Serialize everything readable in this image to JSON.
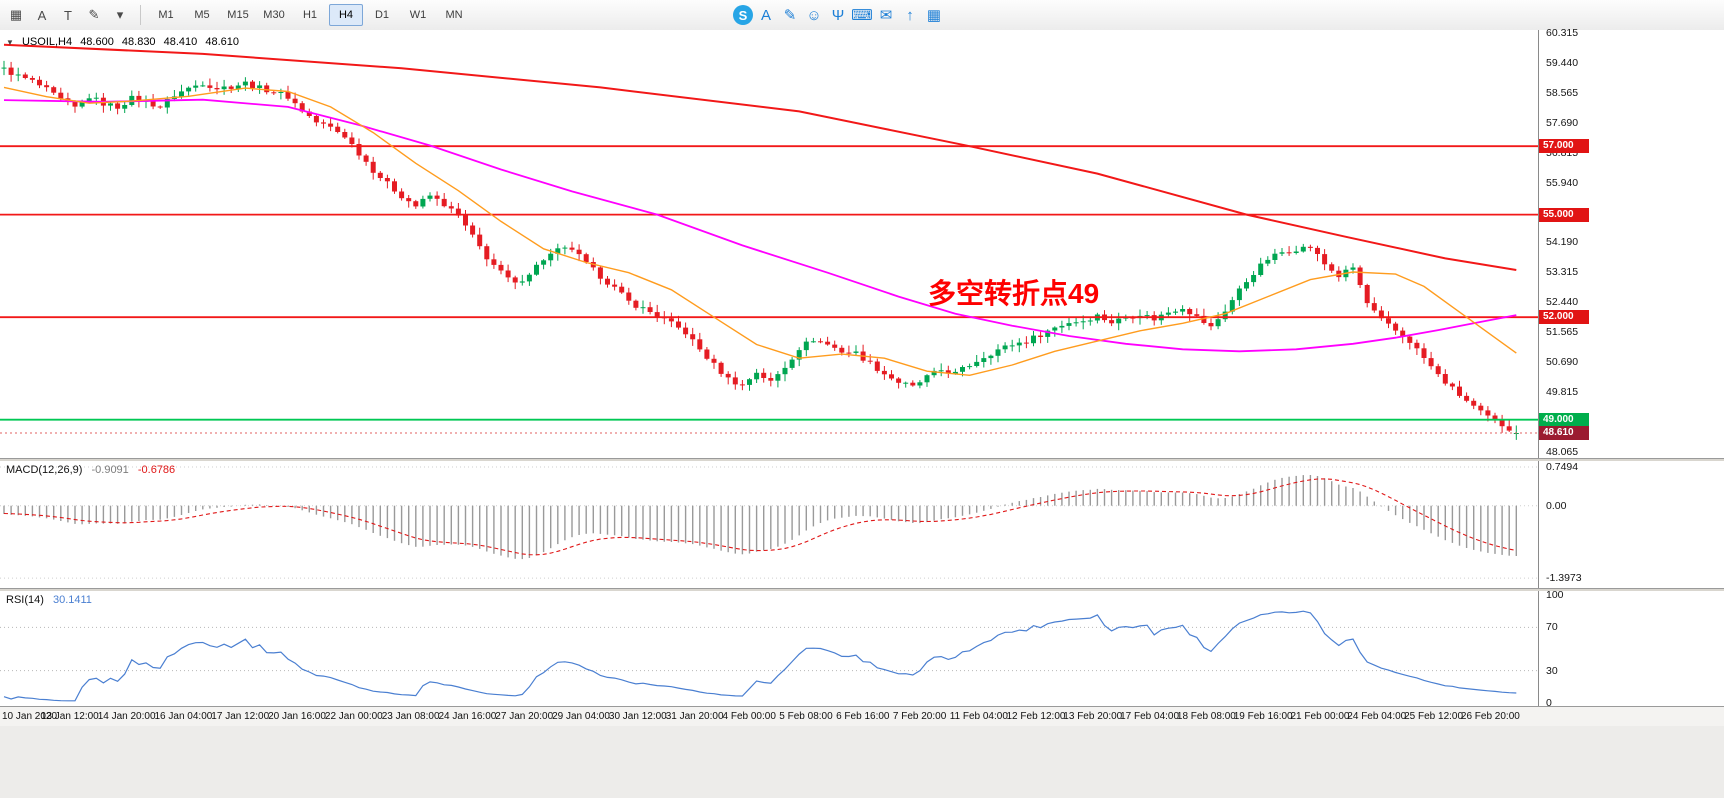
{
  "toolbar": {
    "left_icons": [
      {
        "name": "palette-grid-icon",
        "glyph": "▦"
      },
      {
        "name": "text-label-icon",
        "glyph": "A"
      },
      {
        "name": "cursor-tool-icon",
        "glyph": "T"
      },
      {
        "name": "lines-tool-icon",
        "glyph": "✎"
      },
      {
        "name": "dropdown-caret-icon",
        "glyph": "▾"
      }
    ],
    "timeframes": [
      "M1",
      "M5",
      "M15",
      "M30",
      "H1",
      "H4",
      "D1",
      "W1",
      "MN"
    ],
    "active_timeframe": "H4",
    "input_bar_icons": [
      {
        "name": "sogou-logo-icon",
        "glyph": "S",
        "kind": "logo",
        "color": "#ffffff",
        "bg": "#27a5e6"
      },
      {
        "name": "input-mode-icon",
        "glyph": "A",
        "color": "#1d7fd6"
      },
      {
        "name": "handwriting-icon",
        "glyph": "✎",
        "color": "#1d7fd6"
      },
      {
        "name": "emoji-icon",
        "glyph": "☺",
        "color": "#1d7fd6"
      },
      {
        "name": "voice-icon",
        "glyph": "Ψ",
        "color": "#1d7fd6"
      },
      {
        "name": "keyboard-icon",
        "glyph": "⌨",
        "color": "#1d7fd6"
      },
      {
        "name": "mail-icon",
        "glyph": "✉",
        "color": "#1d7fd6"
      },
      {
        "name": "share-icon",
        "glyph": "↑",
        "color": "#1d7fd6"
      },
      {
        "name": "toolbox-icon",
        "glyph": "▦",
        "color": "#1d7fd6"
      }
    ]
  },
  "chart": {
    "readout": {
      "caret": "▼",
      "symbol": "USOIL,H4",
      "open": "48.600",
      "high": "48.830",
      "low": "48.410",
      "close": "48.610"
    },
    "annotation": {
      "text": "多空转折点49",
      "color": "#fe0000"
    },
    "scale": {
      "max": 60.4,
      "min": 47.88
    },
    "axis_ticks": [
      "60.315",
      "59.440",
      "58.565",
      "57.690",
      "56.815",
      "55.940",
      "55.065",
      "54.190",
      "53.315",
      "52.440",
      "51.565",
      "50.690",
      "49.815",
      "48.940",
      "48.065"
    ],
    "hlines": [
      {
        "price": 57.0,
        "label": "57.000",
        "color": "#f21818",
        "badge_bg": "#e11414"
      },
      {
        "price": 55.0,
        "label": "55.000",
        "color": "#f21818",
        "badge_bg": "#e11414"
      },
      {
        "price": 52.0,
        "label": "52.000",
        "color": "#f21818",
        "badge_bg": "#e11414"
      },
      {
        "price": 49.0,
        "label": "49.000",
        "color": "#00c853",
        "badge_bg": "#00ae4c"
      }
    ],
    "bid_line": {
      "price": 48.61,
      "label": "48.610",
      "color": "#e06060",
      "badge_bg": "#9b1b30"
    }
  },
  "chart_data": {
    "type": "candlestick",
    "symbol": "USOIL",
    "timeframe": "H4",
    "bars": 214,
    "up_color": "#00a651",
    "down_color": "#e51c23",
    "wiggle": 0.16,
    "wick": 0.18,
    "warmup_bars": 30,
    "warmup_start": 60.1,
    "last_candle": {
      "open": 48.6,
      "high": 48.83,
      "low": 48.41,
      "close": 48.61
    },
    "price_path": [
      [
        0,
        59.25
      ],
      [
        2,
        59.05
      ],
      [
        4,
        58.9
      ],
      [
        6,
        58.65
      ],
      [
        8,
        58.35
      ],
      [
        10,
        58.12
      ],
      [
        12,
        58.45
      ],
      [
        14,
        58.25
      ],
      [
        16,
        58.15
      ],
      [
        18,
        58.4
      ],
      [
        20,
        58.3
      ],
      [
        22,
        58.15
      ],
      [
        24,
        58.5
      ],
      [
        26,
        58.7
      ],
      [
        28,
        58.85
      ],
      [
        30,
        58.7
      ],
      [
        32,
        58.75
      ],
      [
        34,
        58.85
      ],
      [
        36,
        58.7
      ],
      [
        38,
        58.6
      ],
      [
        40,
        58.45
      ],
      [
        42,
        58.05
      ],
      [
        44,
        57.7
      ],
      [
        46,
        57.55
      ],
      [
        48,
        57.3
      ],
      [
        50,
        56.8
      ],
      [
        52,
        56.3
      ],
      [
        54,
        55.9
      ],
      [
        56,
        55.55
      ],
      [
        58,
        55.25
      ],
      [
        60,
        55.55
      ],
      [
        62,
        55.3
      ],
      [
        64,
        54.95
      ],
      [
        66,
        54.35
      ],
      [
        68,
        53.75
      ],
      [
        70,
        53.3
      ],
      [
        72,
        52.95
      ],
      [
        74,
        53.3
      ],
      [
        76,
        53.7
      ],
      [
        78,
        53.95
      ],
      [
        80,
        54.0
      ],
      [
        82,
        53.55
      ],
      [
        84,
        53.2
      ],
      [
        86,
        52.85
      ],
      [
        88,
        52.45
      ],
      [
        90,
        52.25
      ],
      [
        92,
        52.05
      ],
      [
        94,
        51.8
      ],
      [
        96,
        51.55
      ],
      [
        98,
        51.05
      ],
      [
        100,
        50.6
      ],
      [
        102,
        50.2
      ],
      [
        104,
        50.0
      ],
      [
        106,
        50.4
      ],
      [
        108,
        50.1
      ],
      [
        110,
        50.55
      ],
      [
        112,
        51.1
      ],
      [
        114,
        51.35
      ],
      [
        116,
        51.2
      ],
      [
        118,
        51.0
      ],
      [
        120,
        50.95
      ],
      [
        122,
        50.65
      ],
      [
        124,
        50.35
      ],
      [
        126,
        50.1
      ],
      [
        128,
        49.95
      ],
      [
        130,
        50.25
      ],
      [
        132,
        50.45
      ],
      [
        134,
        50.35
      ],
      [
        136,
        50.6
      ],
      [
        138,
        50.85
      ],
      [
        140,
        51.05
      ],
      [
        142,
        51.2
      ],
      [
        144,
        51.3
      ],
      [
        146,
        51.5
      ],
      [
        148,
        51.7
      ],
      [
        150,
        51.85
      ],
      [
        152,
        51.9
      ],
      [
        154,
        52.05
      ],
      [
        156,
        51.85
      ],
      [
        158,
        52.0
      ],
      [
        160,
        52.1
      ],
      [
        162,
        51.95
      ],
      [
        164,
        52.15
      ],
      [
        166,
        52.3
      ],
      [
        168,
        52.0
      ],
      [
        170,
        51.7
      ],
      [
        172,
        52.2
      ],
      [
        174,
        52.8
      ],
      [
        176,
        53.3
      ],
      [
        178,
        53.7
      ],
      [
        180,
        53.9
      ],
      [
        182,
        54.0
      ],
      [
        184,
        54.05
      ],
      [
        186,
        53.55
      ],
      [
        188,
        53.2
      ],
      [
        190,
        53.45
      ],
      [
        192,
        52.4
      ],
      [
        194,
        51.9
      ],
      [
        196,
        51.6
      ],
      [
        198,
        51.3
      ],
      [
        200,
        50.8
      ],
      [
        202,
        50.3
      ],
      [
        204,
        49.9
      ],
      [
        206,
        49.55
      ],
      [
        208,
        49.2
      ],
      [
        210,
        48.95
      ],
      [
        212,
        48.75
      ],
      [
        213,
        48.61
      ]
    ],
    "ma_lines": [
      {
        "name": "ma-slow-red",
        "color": "#f21818",
        "width": 2,
        "points": [
          [
            0,
            59.97
          ],
          [
            28,
            59.7
          ],
          [
            56,
            59.28
          ],
          [
            84,
            58.72
          ],
          [
            112,
            58.02
          ],
          [
            136,
            57.0
          ],
          [
            154,
            56.2
          ],
          [
            175,
            55.0
          ],
          [
            189,
            54.35
          ],
          [
            203,
            53.72
          ],
          [
            213,
            53.38
          ]
        ]
      },
      {
        "name": "ma-mid-magenta",
        "color": "#ff00ff",
        "width": 1.8,
        "points": [
          [
            0,
            58.35
          ],
          [
            14,
            58.3
          ],
          [
            28,
            58.36
          ],
          [
            40,
            58.15
          ],
          [
            50,
            57.62
          ],
          [
            60,
            57.02
          ],
          [
            70,
            56.32
          ],
          [
            80,
            55.68
          ],
          [
            92,
            55.0
          ],
          [
            104,
            54.1
          ],
          [
            116,
            53.3
          ],
          [
            126,
            52.6
          ],
          [
            134,
            52.1
          ],
          [
            142,
            51.75
          ],
          [
            150,
            51.45
          ],
          [
            158,
            51.22
          ],
          [
            166,
            51.06
          ],
          [
            174,
            51.0
          ],
          [
            182,
            51.06
          ],
          [
            190,
            51.22
          ],
          [
            196,
            51.4
          ],
          [
            202,
            51.62
          ],
          [
            208,
            51.86
          ],
          [
            213,
            52.06
          ]
        ]
      },
      {
        "name": "ma-fast-orange",
        "color": "#ff9c1e",
        "width": 1.4,
        "points": [
          [
            0,
            58.72
          ],
          [
            6,
            58.45
          ],
          [
            12,
            58.26
          ],
          [
            18,
            58.32
          ],
          [
            26,
            58.46
          ],
          [
            34,
            58.7
          ],
          [
            40,
            58.6
          ],
          [
            46,
            58.15
          ],
          [
            52,
            57.4
          ],
          [
            58,
            56.5
          ],
          [
            64,
            55.7
          ],
          [
            70,
            54.8
          ],
          [
            76,
            54.0
          ],
          [
            82,
            53.6
          ],
          [
            88,
            53.3
          ],
          [
            94,
            52.8
          ],
          [
            100,
            52.0
          ],
          [
            106,
            51.2
          ],
          [
            112,
            50.8
          ],
          [
            118,
            50.92
          ],
          [
            124,
            50.8
          ],
          [
            130,
            50.42
          ],
          [
            136,
            50.3
          ],
          [
            142,
            50.6
          ],
          [
            148,
            51.0
          ],
          [
            154,
            51.3
          ],
          [
            160,
            51.6
          ],
          [
            166,
            51.82
          ],
          [
            172,
            52.1
          ],
          [
            178,
            52.6
          ],
          [
            184,
            53.1
          ],
          [
            190,
            53.32
          ],
          [
            196,
            53.26
          ],
          [
            200,
            52.9
          ],
          [
            204,
            52.3
          ],
          [
            208,
            51.7
          ],
          [
            213,
            50.95
          ]
        ]
      }
    ],
    "time_labels": [
      {
        "bar": 0,
        "text": "10 Jan 2020"
      },
      {
        "bar": 9,
        "text": "13 Jan 12:00"
      },
      {
        "bar": 17,
        "text": "14 Jan 20:00"
      },
      {
        "bar": 25,
        "text": "16 Jan 04:00"
      },
      {
        "bar": 33,
        "text": "17 Jan 12:00"
      },
      {
        "bar": 41,
        "text": "20 Jan 16:00"
      },
      {
        "bar": 49,
        "text": "22 Jan 00:00"
      },
      {
        "bar": 57,
        "text": "23 Jan 08:00"
      },
      {
        "bar": 65,
        "text": "24 Jan 16:00"
      },
      {
        "bar": 73,
        "text": "27 Jan 20:00"
      },
      {
        "bar": 81,
        "text": "29 Jan 04:00"
      },
      {
        "bar": 89,
        "text": "30 Jan 12:00"
      },
      {
        "bar": 97,
        "text": "31 Jan 20:00"
      },
      {
        "bar": 105,
        "text": "4 Feb 00:00"
      },
      {
        "bar": 113,
        "text": "5 Feb 08:00"
      },
      {
        "bar": 121,
        "text": "6 Feb 16:00"
      },
      {
        "bar": 129,
        "text": "7 Feb 20:00"
      },
      {
        "bar": 137,
        "text": "11 Feb 04:00"
      },
      {
        "bar": 145,
        "text": "12 Feb 12:00"
      },
      {
        "bar": 153,
        "text": "13 Feb 20:00"
      },
      {
        "bar": 161,
        "text": "17 Feb 04:00"
      },
      {
        "bar": 169,
        "text": "18 Feb 08:00"
      },
      {
        "bar": 177,
        "text": "19 Feb 16:00"
      },
      {
        "bar": 185,
        "text": "21 Feb 00:00"
      },
      {
        "bar": 193,
        "text": "24 Feb 04:00"
      },
      {
        "bar": 201,
        "text": "25 Feb 12:00"
      },
      {
        "bar": 209,
        "text": "26 Feb 20:00"
      }
    ]
  },
  "indicators": {
    "macd": {
      "label": "MACD(12,26,9)",
      "value_main": "-0.9091",
      "value_signal": "-0.6786",
      "scale": {
        "max": 0.8644,
        "min": -1.589
      },
      "ticks": [
        {
          "v": 0.7494,
          "t": "0.7494"
        },
        {
          "v": 0,
          "t": "0.00"
        },
        {
          "v": -1.3973,
          "t": "-1.3973"
        }
      ],
      "hist_color": "#9a9a9a",
      "signal_color": "#e01818"
    },
    "rsi": {
      "label": "RSI(14)",
      "value": "30.1411",
      "scale": {
        "max": 103.7,
        "min": -2.8
      },
      "ticks": [
        {
          "v": 100,
          "t": "100"
        },
        {
          "v": 70,
          "t": "70"
        },
        {
          "v": 30,
          "t": "30"
        },
        {
          "v": 0,
          "t": "0"
        }
      ],
      "levels": [
        70,
        30
      ],
      "line_color": "#4a7fd1"
    }
  }
}
